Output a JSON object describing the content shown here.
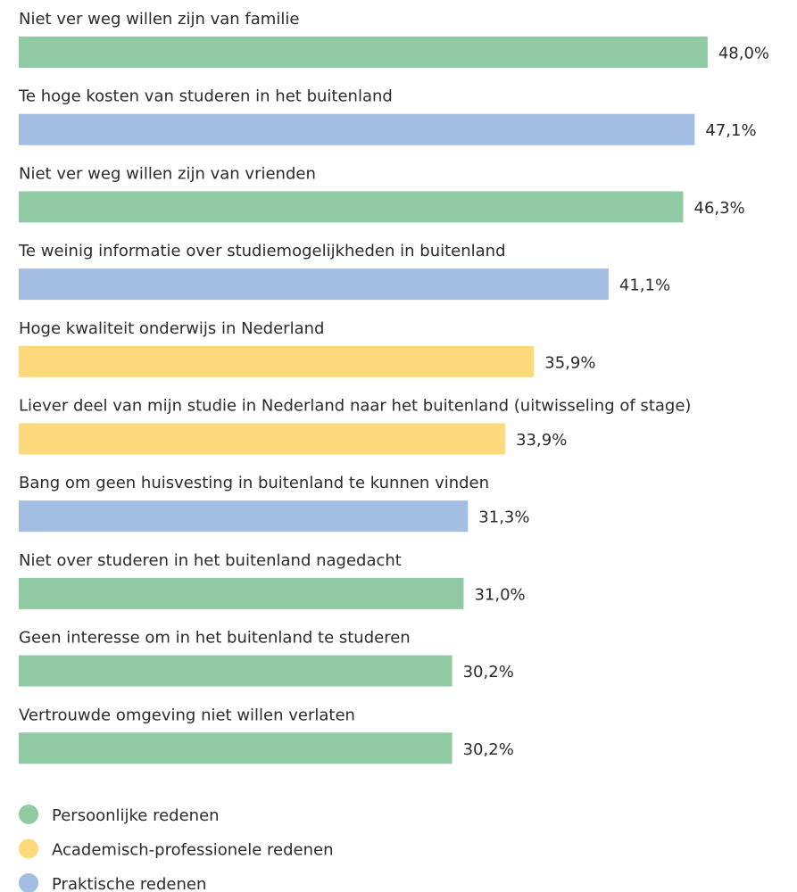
{
  "chart_data": {
    "type": "bar",
    "orientation": "horizontal",
    "categories": [
      "Niet ver weg willen zijn van familie",
      "Te hoge kosten van studeren in het buitenland",
      "Niet ver weg willen zijn van vrienden",
      "Te weinig informatie over studiemogelijkheden in buitenland",
      "Hoge kwaliteit onderwijs in Nederland",
      "Liever deel van mijn studie in Nederland naar het buitenland (uitwisseling of stage)",
      "Bang om geen huisvesting in buitenland te kunnen vinden",
      "Niet over studeren in het buitenland nagedacht",
      "Geen interesse om in het buitenland te studeren",
      "Vertrouwde omgeving niet willen verlaten"
    ],
    "series": [
      {
        "name": "Persoonlijke redenen",
        "color": "#8fcaa3",
        "values": [
          48.0,
          null,
          46.3,
          null,
          null,
          null,
          null,
          31.0,
          30.2,
          30.2
        ],
        "value_labels": [
          "48,0%",
          null,
          "46,3%",
          null,
          null,
          null,
          null,
          "31,0%",
          "30,2%",
          "30,2%"
        ]
      },
      {
        "name": "Academisch-professionele redenen",
        "color": "#fdd97c",
        "values": [
          null,
          null,
          null,
          null,
          35.9,
          33.9,
          null,
          null,
          null,
          null
        ],
        "value_labels": [
          null,
          null,
          null,
          null,
          "35,9%",
          "33,9%",
          null,
          null,
          null,
          null
        ]
      },
      {
        "name": "Praktische redenen",
        "color": "#a3bde3",
        "values": [
          null,
          47.1,
          null,
          41.1,
          null,
          null,
          31.3,
          null,
          null,
          null
        ],
        "value_labels": [
          null,
          "47,1%",
          null,
          "41,1%",
          null,
          null,
          "31,3%",
          null,
          null,
          null
        ]
      }
    ],
    "legend": "bottom-left"
  }
}
